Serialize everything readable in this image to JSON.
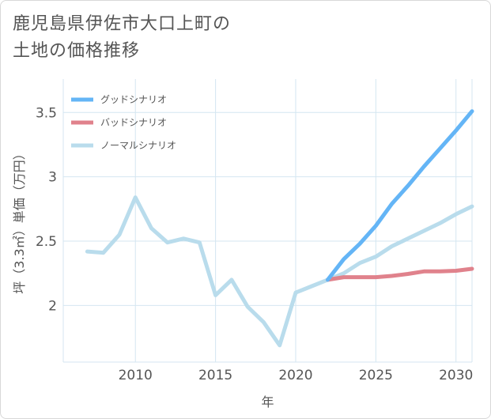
{
  "header": {
    "title_line1": "鹿児島県伊佐市大口上町の",
    "title_line2": "土地の価格推移"
  },
  "colors": {
    "good": "#64b5f6",
    "bad": "#e0828c",
    "normal": "#b9dcec",
    "grid": "#d4e6f1"
  },
  "chart_data": {
    "type": "line",
    "title": "鹿児島県伊佐市大口上町の土地の価格推移",
    "xlabel": "年",
    "ylabel": "坪（3.3㎡）単価（万円）",
    "xlim": [
      2005.5,
      2031
    ],
    "ylim": [
      1.56,
      3.76
    ],
    "xticks": [
      2010,
      2015,
      2020,
      2025,
      2030
    ],
    "xtick_labels": [
      "2010",
      "2015",
      "2020",
      "2025",
      "2030"
    ],
    "yticks": [
      2,
      2.5,
      3,
      3.5
    ],
    "ytick_labels": [
      "2",
      "2.5",
      "3",
      "3.5"
    ],
    "grid": true,
    "legend_position": "top-left",
    "series": [
      {
        "name": "グッドシナリオ",
        "key": "good",
        "x": [
          2022,
          2023,
          2024,
          2025,
          2026,
          2027,
          2028,
          2029,
          2030,
          2031
        ],
        "y": [
          2.2,
          2.36,
          2.48,
          2.62,
          2.79,
          2.93,
          3.08,
          3.22,
          3.36,
          3.51
        ]
      },
      {
        "name": "バッドシナリオ",
        "key": "bad",
        "x": [
          2022,
          2023,
          2024,
          2025,
          2026,
          2027,
          2028,
          2029,
          2030,
          2031
        ],
        "y": [
          2.2,
          2.22,
          2.22,
          2.22,
          2.23,
          2.245,
          2.265,
          2.265,
          2.27,
          2.285
        ]
      },
      {
        "name": "ノーマルシナリオ",
        "key": "normal",
        "x": [
          2007,
          2008,
          2009,
          2010,
          2011,
          2012,
          2013,
          2014,
          2015,
          2016,
          2017,
          2018,
          2019,
          2020,
          2021,
          2022,
          2023,
          2024,
          2025,
          2026,
          2027,
          2028,
          2029,
          2030,
          2031
        ],
        "y": [
          2.42,
          2.41,
          2.55,
          2.84,
          2.6,
          2.49,
          2.52,
          2.49,
          2.08,
          2.2,
          1.99,
          1.87,
          1.69,
          2.1,
          2.15,
          2.2,
          2.25,
          2.33,
          2.38,
          2.46,
          2.52,
          2.58,
          2.64,
          2.71,
          2.77
        ]
      }
    ]
  }
}
